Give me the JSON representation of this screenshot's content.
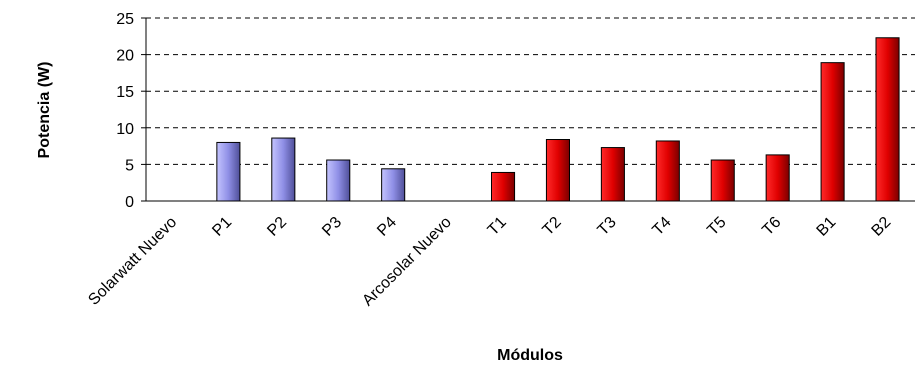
{
  "chart_data": {
    "type": "bar",
    "xlabel": "Módulos",
    "ylabel": "Potencia (W)",
    "ylim": [
      0,
      25
    ],
    "yticks": [
      0,
      5,
      10,
      15,
      20,
      25
    ],
    "grid": true,
    "categories": [
      "Solarwatt Nuevo",
      "P1",
      "P2",
      "P3",
      "P4",
      "Arcosolar Nuevo",
      "T1",
      "T2",
      "T3",
      "T4",
      "T5",
      "T6",
      "B1",
      "B2"
    ],
    "values": [
      0,
      8.0,
      8.6,
      5.6,
      4.4,
      0,
      3.9,
      8.4,
      7.3,
      8.2,
      5.6,
      6.3,
      18.9,
      22.3
    ],
    "bar_colors": [
      "#9999ff",
      "#9999ff",
      "#9999ff",
      "#9999ff",
      "#9999ff",
      "#ff0000",
      "#ff0000",
      "#ff0000",
      "#ff0000",
      "#ff0000",
      "#ff0000",
      "#ff0000",
      "#ff0000",
      "#ff0000"
    ]
  }
}
